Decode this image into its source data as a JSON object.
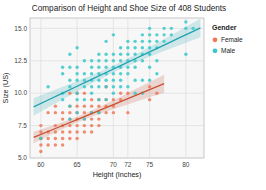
{
  "chart_data": {
    "type": "scatter",
    "title": "Comparison of Height and Shoe Size of 408 Students",
    "x_label": "Height (Inches)",
    "y_label": "Size (US)",
    "xlim": [
      58.5,
      82.5
    ],
    "ylim": [
      5.0,
      15.8
    ],
    "xticks": [
      60,
      65,
      70,
      72,
      75,
      80
    ],
    "yticks": [
      {
        "value": 5.0,
        "label": "5.0"
      },
      7.5,
      {
        "value": 10.0,
        "label": "10.0"
      },
      12.5,
      {
        "value": 15.0,
        "label": "15.0"
      }
    ],
    "grid": true,
    "legend": "right",
    "legend_title": "Gender",
    "series": [
      {
        "name": "Female",
        "color": "#f07858",
        "x": [
          60,
          60,
          60,
          60,
          60,
          61,
          61,
          61,
          61,
          62,
          62,
          62,
          62,
          62,
          63,
          63,
          63,
          63,
          63,
          63,
          64,
          64,
          64,
          64,
          64,
          64,
          65,
          65,
          65,
          65,
          65,
          65,
          66,
          66,
          66,
          66,
          66,
          67,
          67,
          67,
          67,
          67,
          68,
          68,
          68,
          68,
          69,
          69,
          69,
          70,
          70,
          70,
          71,
          71,
          72,
          72,
          75,
          75,
          76,
          60,
          62,
          64,
          65,
          66,
          67,
          68,
          69
        ],
        "values": [
          6.5,
          6.0,
          7.0,
          5.5,
          6.5,
          6.5,
          7.0,
          6.0,
          8.5,
          6.5,
          7.0,
          7.5,
          6.0,
          8.5,
          6.5,
          7.0,
          7.5,
          8.0,
          6.0,
          8.5,
          7.0,
          7.5,
          8.0,
          6.5,
          8.5,
          9.0,
          7.0,
          7.5,
          8.0,
          8.5,
          9.0,
          6.5,
          7.5,
          8.0,
          8.5,
          9.0,
          7.0,
          8.0,
          8.5,
          9.0,
          7.5,
          9.5,
          8.5,
          9.0,
          8.0,
          9.5,
          9.0,
          8.5,
          9.5,
          9.0,
          9.5,
          8.5,
          9.5,
          10.0,
          10.0,
          8.5,
          10.5,
          9.5,
          10.0,
          7.5,
          9.0,
          10.0,
          10.0,
          10.0,
          7.0,
          7.5,
          10.5
        ],
        "fit": {
          "type": "line",
          "color": "#c85030",
          "x": [
            59,
            61,
            63,
            65,
            67,
            69,
            71,
            73,
            75,
            77
          ],
          "values": [
            6.584,
            7.045,
            7.506,
            7.966,
            8.427,
            8.888,
            9.349,
            9.809,
            10.27,
            10.731
          ],
          "band": {
            "type": "area",
            "color": "#c87060",
            "lower": [
              6.143,
              6.699,
              7.238,
              7.742,
              8.19,
              8.589,
              8.963,
              9.324,
              9.679,
              10.031
            ],
            "upper": [
              7.025,
              7.391,
              7.773,
              8.191,
              8.664,
              9.186,
              9.734,
              10.294,
              10.861,
              11.43
            ]
          }
        }
      },
      {
        "name": "Male",
        "color": "#38c8c8",
        "x": [
          60,
          61,
          63,
          63,
          63,
          64,
          64,
          64,
          64,
          65,
          65,
          65,
          65,
          65,
          66,
          66,
          66,
          66,
          66,
          67,
          67,
          67,
          67,
          67,
          67,
          68,
          68,
          68,
          68,
          68,
          68,
          69,
          69,
          69,
          69,
          69,
          69,
          70,
          70,
          70,
          70,
          70,
          70,
          71,
          71,
          71,
          71,
          71,
          72,
          72,
          72,
          72,
          72,
          73,
          73,
          73,
          73,
          73,
          74,
          74,
          74,
          74,
          74,
          75,
          75,
          75,
          75,
          75,
          76,
          76,
          76,
          76,
          77,
          77,
          77,
          78,
          78,
          80,
          80,
          80,
          81,
          64,
          65,
          66,
          67,
          68,
          69,
          70,
          71,
          73,
          74,
          75,
          76,
          63,
          64,
          65,
          71,
          72,
          73,
          74,
          75,
          68,
          69,
          70,
          72
        ],
        "values": [
          6.5,
          10.5,
          9.5,
          10.0,
          11.5,
          9.0,
          10.5,
          11.0,
          12.0,
          9.5,
          10.0,
          11.0,
          11.5,
          12.0,
          9.5,
          10.5,
          11.0,
          11.5,
          12.5,
          10.0,
          10.5,
          11.0,
          11.5,
          12.0,
          12.5,
          10.5,
          11.0,
          11.5,
          12.0,
          12.5,
          9.5,
          10.5,
          11.0,
          11.5,
          12.0,
          12.5,
          13.0,
          11.0,
          11.5,
          12.0,
          12.5,
          13.0,
          10.5,
          11.5,
          12.0,
          12.5,
          13.0,
          13.5,
          12.0,
          12.5,
          13.0,
          13.5,
          11.5,
          12.0,
          12.5,
          13.0,
          13.5,
          14.0,
          12.5,
          13.0,
          13.5,
          14.0,
          14.5,
          13.0,
          13.5,
          14.0,
          14.5,
          15.0,
          13.5,
          14.0,
          14.5,
          12.5,
          14.0,
          14.5,
          15.0,
          14.5,
          15.0,
          13.0,
          15.0,
          15.5,
          15.0,
          8.0,
          8.5,
          8.0,
          8.5,
          8.5,
          9.5,
          10.0,
          10.5,
          11.0,
          11.0,
          12.0,
          11.5,
          12.0,
          13.0,
          13.5,
          11.0,
          10.5,
          10.0,
          10.0,
          11.0,
          13.0,
          14.0,
          14.5,
          14.0
        ],
        "fit": {
          "type": "line",
          "color": "#20a0b0",
          "x": [
            59,
            61,
            63,
            65,
            67,
            69,
            71,
            73,
            75,
            77,
            79,
            81,
            82
          ],
          "values": [
            8.942,
            9.472,
            10.002,
            10.533,
            11.063,
            11.593,
            12.123,
            12.654,
            13.184,
            13.714,
            14.244,
            14.774,
            15.04
          ],
          "band": {
            "type": "area",
            "color": "#50b8c0",
            "lower": [
              8.253,
              8.887,
              9.516,
              10.137,
              10.744,
              11.323,
              11.859,
              12.35,
              12.809,
              13.251,
              13.684,
              14.112,
              14.324
            ],
            "upper": [
              9.63,
              10.057,
              10.489,
              10.928,
              11.382,
              11.863,
              12.387,
              12.957,
              13.559,
              14.177,
              14.804,
              15.437,
              15.755
            ]
          }
        }
      }
    ]
  }
}
